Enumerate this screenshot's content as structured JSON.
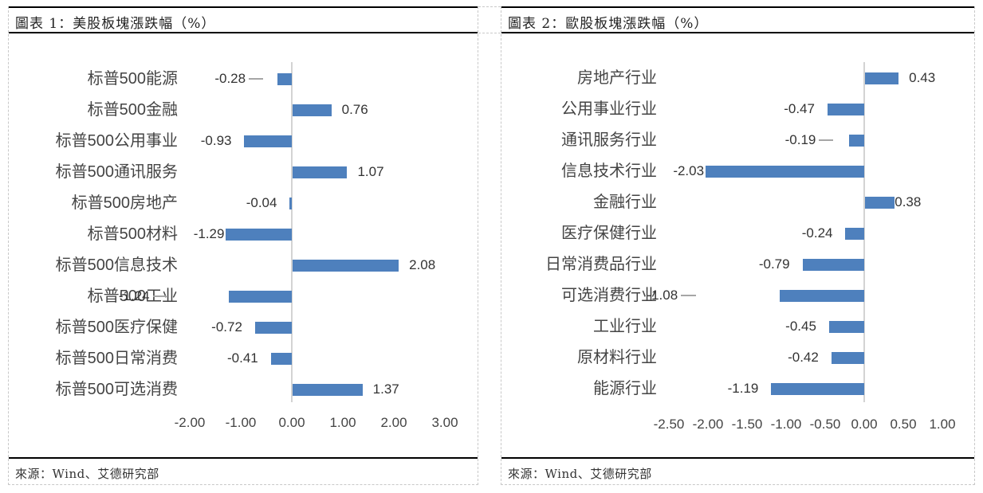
{
  "panels": [
    {
      "title": "圖表 1：美股板塊漲跌幅（%）",
      "source": "來源：Wind、艾德研究部"
    },
    {
      "title": "圖表 2：歐股板塊漲跌幅（%）",
      "source": "來源：Wind、艾德研究部"
    }
  ],
  "chart_data": [
    {
      "type": "bar",
      "orientation": "horizontal",
      "title": "圖表 1：美股板塊漲跌幅（%）",
      "xlabel": "",
      "ylabel": "",
      "xlim": [
        -2.0,
        3.0
      ],
      "ticks": [
        "-2.00",
        "-1.00",
        "0.00",
        "1.00",
        "2.00",
        "3.00"
      ],
      "grid": false,
      "legend": null,
      "bar_color": "#4e80bd",
      "categories": [
        "标普500能源",
        "标普500金融",
        "标普500公用事业",
        "标普500通讯服务",
        "标普500房地产",
        "标普500材料",
        "标普500信息技术",
        "标普500工业",
        "标普500医疗保健",
        "标普500日常消费",
        "标普500可选消费"
      ],
      "values": [
        -0.28,
        0.76,
        -0.93,
        1.07,
        -0.04,
        -1.29,
        2.08,
        -1.24,
        -0.72,
        -0.41,
        1.37
      ],
      "labels": [
        "-0.28",
        "0.76",
        "-0.93",
        "1.07",
        "-0.04",
        "-1.29",
        "2.08",
        "-1.24",
        "-0.72",
        "-0.41",
        "1.37"
      ],
      "source": "來源：Wind、艾德研究部"
    },
    {
      "type": "bar",
      "orientation": "horizontal",
      "title": "圖表 2：歐股板塊漲跌幅（%）",
      "xlabel": "",
      "ylabel": "",
      "xlim": [
        -2.5,
        1.0
      ],
      "ticks": [
        "-2.50",
        "-2.00",
        "-1.50",
        "-1.00",
        "-0.50",
        "0.00",
        "0.50",
        "1.00"
      ],
      "grid": false,
      "legend": null,
      "bar_color": "#4e80bd",
      "categories": [
        "房地产行业",
        "公用事业行业",
        "通讯服务行业",
        "信息技术行业",
        "金融行业",
        "医疗保健行业",
        "日常消费品行业",
        "可选消费行业",
        "工业行业",
        "原材料行业",
        "能源行业"
      ],
      "values": [
        0.43,
        -0.47,
        -0.19,
        -2.03,
        0.38,
        -0.24,
        -0.79,
        -1.08,
        -0.45,
        -0.42,
        -1.19
      ],
      "labels": [
        "0.43",
        "-0.47",
        "-0.19",
        "-2.03",
        "0.38",
        "-0.24",
        "-0.79",
        "-1.08",
        "-0.45",
        "-0.42",
        "-1.19"
      ],
      "source": "來源：Wind、艾德研究部"
    }
  ]
}
